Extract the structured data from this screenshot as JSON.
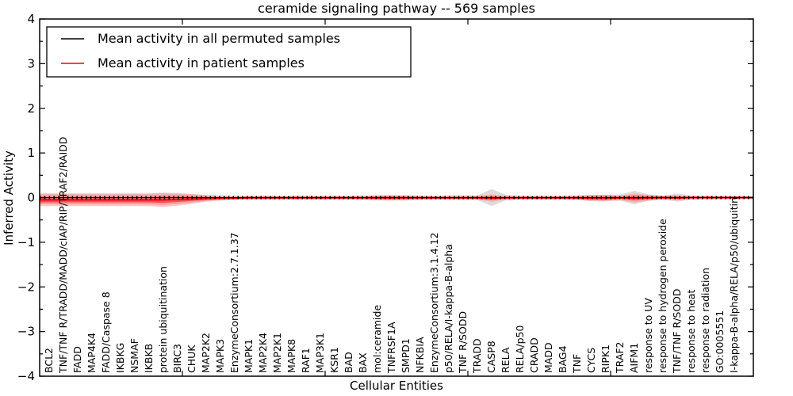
{
  "title": "ceramide signaling pathway -- 569 samples",
  "legend": {
    "items": [
      {
        "label": "Mean activity in all permuted samples",
        "color": "#000000"
      },
      {
        "label": "Mean activity in patient samples",
        "color": "#ff0000"
      }
    ]
  },
  "axes": {
    "ylabel": "Inferred Activity",
    "xlabel": "Cellular Entities",
    "y_ticks": [
      "4",
      "3",
      "2",
      "1",
      "0",
      "−1",
      "−2",
      "−3",
      "−4"
    ],
    "ylim": [
      -4,
      4
    ]
  },
  "colors": {
    "permuted_line": "#000000",
    "patient_line": "#ff0000",
    "permuted_band": "#c0c0c0",
    "patient_band_outer": "#ff9999",
    "patient_band_mid": "#ff7777",
    "patient_band_core": "#dd5555"
  },
  "chart_data": {
    "type": "violin",
    "title": "ceramide signaling pathway -- 569 samples",
    "xlabel": "Cellular Entities",
    "ylabel": "Inferred Activity",
    "ylim": [
      -4,
      4
    ],
    "legend_position": "upper left",
    "categories": [
      "BCL2",
      "TNF/TNF R/TRADD/MADD/cIAP/RIP/TRAF2/RAIDD",
      "FADD",
      "MAP4K4",
      "FADD/Caspase 8",
      "IKBKG",
      "NSMAF",
      "IKBKB",
      "protein ubiquitination",
      "BIRC3",
      "CHUK",
      "MAP2K2",
      "MAPK3",
      "EnzymeConsortium:2.7.1.37",
      "MAPK1",
      "MAP2K4",
      "MAP2K1",
      "MAPK8",
      "RAF1",
      "MAP3K1",
      "KSR1",
      "BAD",
      "BAX",
      "mol:ceramide",
      "TNFRSF1A",
      "SMPD1",
      "NFKBIA",
      "EnzymeConsortium:3.1.4.12",
      "p50/RELA/I-kappa-B-alpha",
      "TNF R/SODD",
      "TRADD",
      "CASP8",
      "RELA",
      "RELA/p50",
      "CRADD",
      "MADD",
      "BAG4",
      "TNF",
      "CYCS",
      "RIPK1",
      "TRAF2",
      "AIFM1",
      "response to UV",
      "response to hydrogen peroxide",
      "TNF/TNF R/SODD",
      "response to heat",
      "response to radiation",
      "GO:0005551",
      "I-kappa-B-alpha/RELA/p50/ubiquitin"
    ],
    "series": [
      {
        "name": "Mean activity in all permuted samples",
        "color": "#000000",
        "values": [
          0,
          0,
          0,
          0,
          0,
          0,
          0,
          0,
          0,
          0,
          0,
          0,
          0,
          0,
          0,
          0,
          0,
          0,
          0,
          0,
          0,
          0,
          0,
          0,
          0,
          0,
          0,
          0,
          0,
          0,
          0,
          0,
          0,
          0,
          0,
          0,
          0,
          0,
          0,
          0,
          0,
          0,
          0,
          0,
          0,
          0,
          0,
          0,
          0
        ]
      },
      {
        "name": "Mean activity in patient samples",
        "color": "#ff0000",
        "values": [
          -0.05,
          -0.05,
          -0.05,
          -0.05,
          -0.05,
          -0.05,
          -0.05,
          -0.05,
          -0.05,
          -0.04,
          -0.03,
          -0.02,
          -0.015,
          -0.01,
          -0.005,
          -0.005,
          -0.005,
          -0.005,
          -0.005,
          -0.005,
          -0.005,
          -0.005,
          -0.005,
          -0.005,
          -0.005,
          -0.005,
          -0.005,
          -0.005,
          -0.005,
          -0.005,
          -0.005,
          -0.01,
          -0.005,
          -0.005,
          -0.005,
          -0.005,
          -0.005,
          -0.005,
          -0.01,
          -0.01,
          -0.005,
          -0.01,
          -0.005,
          0,
          -0.005,
          0,
          0,
          0,
          0
        ]
      }
    ],
    "patient_spread": [
      0.14,
      0.14,
      0.14,
      0.14,
      0.14,
      0.14,
      0.14,
      0.14,
      0.16,
      0.14,
      0.11,
      0.07,
      0.05,
      0.04,
      0.035,
      0.035,
      0.035,
      0.035,
      0.035,
      0.035,
      0.035,
      0.035,
      0.04,
      0.055,
      0.06,
      0.055,
      0.04,
      0.035,
      0.035,
      0.035,
      0.04,
      0.08,
      0.04,
      0.035,
      0.035,
      0.035,
      0.035,
      0.045,
      0.07,
      0.075,
      0.05,
      0.1,
      0.065,
      0.04,
      0.055,
      0.035,
      0.035,
      0.035,
      0.03
    ],
    "permuted_spread": [
      0.09,
      0.09,
      0.09,
      0.09,
      0.09,
      0.09,
      0.09,
      0.09,
      0.1,
      0.09,
      0.08,
      0.06,
      0.05,
      0.045,
      0.045,
      0.045,
      0.045,
      0.045,
      0.045,
      0.045,
      0.045,
      0.045,
      0.045,
      0.05,
      0.05,
      0.05,
      0.045,
      0.045,
      0.05,
      0.055,
      0.05,
      0.19,
      0.06,
      0.045,
      0.045,
      0.045,
      0.045,
      0.05,
      0.06,
      0.065,
      0.07,
      0.15,
      0.07,
      0.045,
      0.09,
      0.045,
      0.045,
      0.04,
      0.035
    ]
  }
}
